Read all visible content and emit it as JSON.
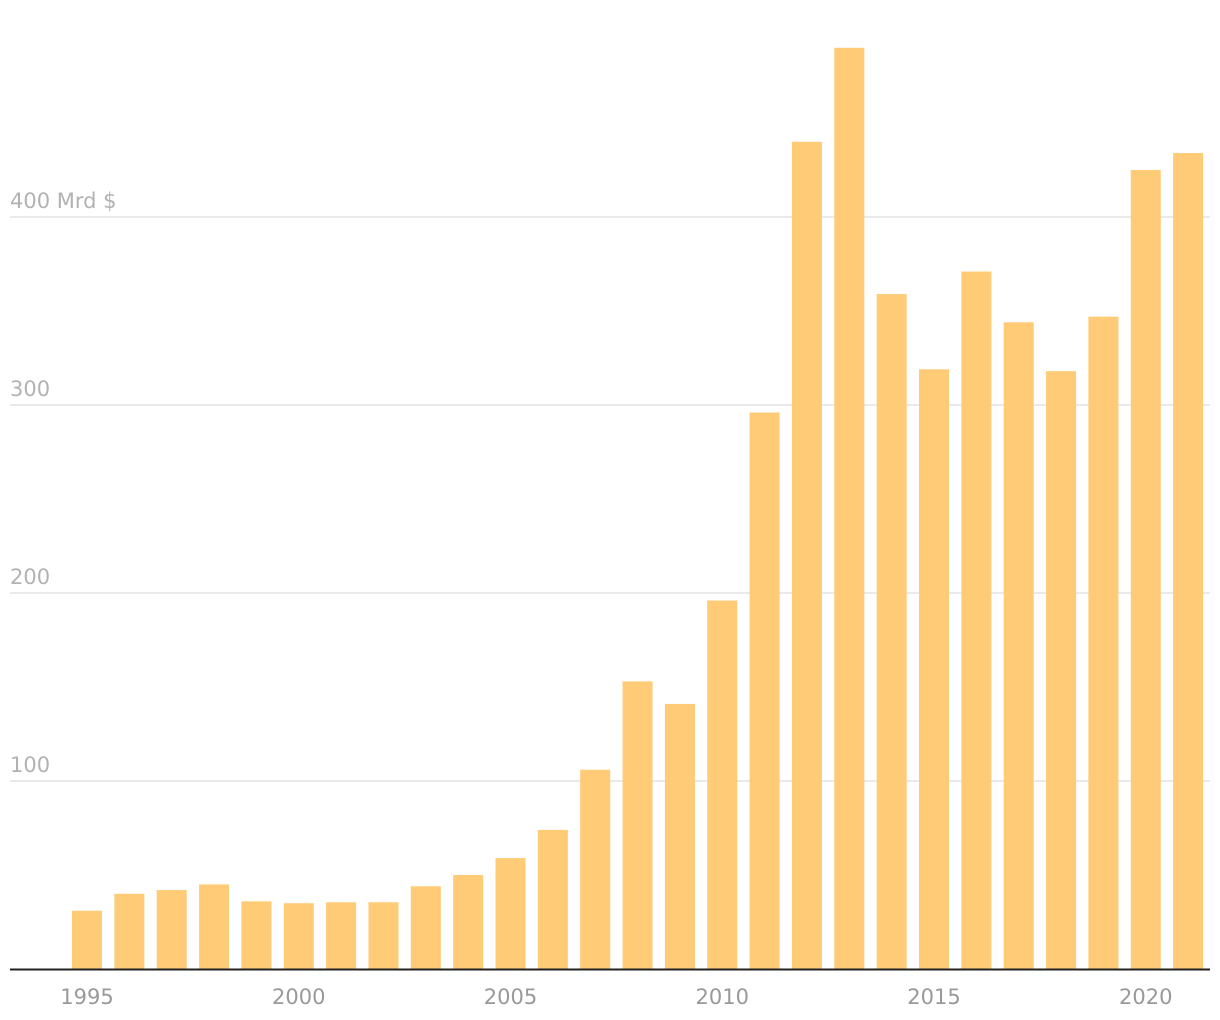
{
  "chart_data": {
    "type": "bar",
    "title": "",
    "xlabel": "",
    "ylabel": "",
    "unit_label": "Mrd $",
    "categories": [
      "1995",
      "1996",
      "1997",
      "1998",
      "1999",
      "2000",
      "2001",
      "2002",
      "2003",
      "2004",
      "2005",
      "2006",
      "2007",
      "2008",
      "2009",
      "2010",
      "2011",
      "2012",
      "2013",
      "2014",
      "2015",
      "2016",
      "2017",
      "2018",
      "2019",
      "2020",
      "2021"
    ],
    "values": [
      31,
      40,
      42,
      45,
      36,
      35,
      35.5,
      35.5,
      44,
      50,
      59,
      74,
      106,
      153,
      141,
      196,
      296,
      440,
      490,
      359,
      319,
      371,
      344,
      318,
      347,
      425,
      434
    ],
    "ylim": [
      0,
      500
    ],
    "y_ticks": [
      {
        "value": 100,
        "label": "100"
      },
      {
        "value": 200,
        "label": "200"
      },
      {
        "value": 300,
        "label": "300"
      },
      {
        "value": 400,
        "label": "400 Mrd $"
      }
    ],
    "x_ticks": [
      "1995",
      "2000",
      "2005",
      "2010",
      "2015",
      "2020"
    ],
    "grid": true,
    "colors": {
      "bar": "#ffcb77",
      "grid": "#e3e3e3",
      "axis": "#222222",
      "tick_text": "#b2b2b2",
      "x_text": "#999999"
    }
  }
}
